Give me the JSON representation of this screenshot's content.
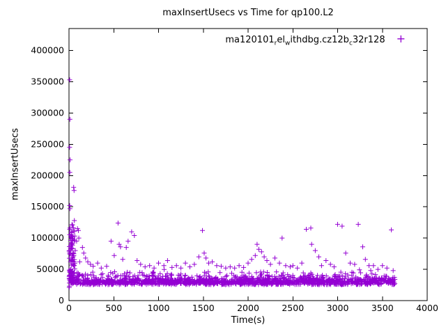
{
  "figure": {
    "title": "maxInsertUsecs vs Time for qp100.L2",
    "xlabel": "Time(s)",
    "ylabel": "maxInsertUsecs"
  },
  "legend": {
    "plain_label": "ma120101_rel_withdbg.cz12b_c32r128",
    "segments": [
      {
        "t": "ma120101"
      },
      {
        "s": "r"
      },
      {
        "t": "el"
      },
      {
        "s": "w"
      },
      {
        "t": "ithdbg.cz12b"
      },
      {
        "s": "c"
      },
      {
        "t": "32r128"
      }
    ],
    "marker_glyph": "+",
    "marker_color": "#9400d3"
  },
  "chart_data": {
    "type": "scatter",
    "title": "maxInsertUsecs vs Time for qp100.L2",
    "xlabel": "Time(s)",
    "ylabel": "maxInsertUsecs",
    "xlim": [
      0,
      4000
    ],
    "ylim": [
      0,
      435000
    ],
    "xticks": [
      0,
      500,
      1000,
      1500,
      2000,
      2500,
      3000,
      3500,
      4000
    ],
    "yticks": [
      0,
      50000,
      100000,
      150000,
      200000,
      250000,
      300000,
      350000,
      400000
    ],
    "grid": false,
    "legend_position": "top-right-inside",
    "series_name": "ma120101_rel_withdbg.cz12b_c32r128",
    "marker": "plus",
    "color": "#9400d3",
    "outlier_points": [
      [
        8,
        353000
      ],
      [
        10,
        290000
      ],
      [
        7,
        245000
      ],
      [
        12,
        225000
      ],
      [
        9,
        205000
      ],
      [
        52,
        181000
      ],
      [
        57,
        176000
      ],
      [
        8,
        152000
      ],
      [
        11,
        147000
      ],
      [
        60,
        128000
      ],
      [
        40,
        121000
      ],
      [
        95,
        115000
      ],
      [
        105,
        112000
      ],
      [
        110,
        100000
      ],
      [
        85,
        95000
      ],
      [
        30,
        90000
      ],
      [
        22,
        86000
      ],
      [
        70,
        80000
      ],
      [
        18,
        76000
      ],
      [
        45,
        70000
      ],
      [
        35,
        66000
      ],
      [
        120,
        62000
      ],
      [
        3,
        21000
      ],
      [
        5,
        23000
      ],
      [
        150,
        85000
      ],
      [
        165,
        76000
      ],
      [
        185,
        68000
      ],
      [
        210,
        62000
      ],
      [
        240,
        58000
      ],
      [
        270,
        55000
      ],
      [
        320,
        60000
      ],
      [
        360,
        52000
      ],
      [
        420,
        55000
      ],
      [
        470,
        95000
      ],
      [
        505,
        72000
      ],
      [
        548,
        124000
      ],
      [
        560,
        90000
      ],
      [
        575,
        86000
      ],
      [
        600,
        66000
      ],
      [
        640,
        85000
      ],
      [
        660,
        95000
      ],
      [
        700,
        110000
      ],
      [
        730,
        104000
      ],
      [
        760,
        64000
      ],
      [
        800,
        58000
      ],
      [
        850,
        54000
      ],
      [
        900,
        56000
      ],
      [
        950,
        52000
      ],
      [
        1000,
        60000
      ],
      [
        1060,
        56000
      ],
      [
        1100,
        64000
      ],
      [
        1150,
        53000
      ],
      [
        1200,
        56000
      ],
      [
        1250,
        52000
      ],
      [
        1300,
        60000
      ],
      [
        1350,
        54000
      ],
      [
        1400,
        58000
      ],
      [
        1450,
        70000
      ],
      [
        1490,
        112000
      ],
      [
        1510,
        76000
      ],
      [
        1530,
        68000
      ],
      [
        1560,
        60000
      ],
      [
        1600,
        62000
      ],
      [
        1650,
        56000
      ],
      [
        1700,
        55000
      ],
      [
        1750,
        52000
      ],
      [
        1800,
        54000
      ],
      [
        1850,
        52000
      ],
      [
        1900,
        56000
      ],
      [
        1950,
        53000
      ],
      [
        2000,
        60000
      ],
      [
        2040,
        66000
      ],
      [
        2080,
        72000
      ],
      [
        2100,
        90000
      ],
      [
        2120,
        82000
      ],
      [
        2150,
        78000
      ],
      [
        2180,
        70000
      ],
      [
        2210,
        64000
      ],
      [
        2250,
        58000
      ],
      [
        2300,
        68000
      ],
      [
        2350,
        60000
      ],
      [
        2380,
        100000
      ],
      [
        2420,
        56000
      ],
      [
        2470,
        54000
      ],
      [
        2500,
        56000
      ],
      [
        2550,
        52000
      ],
      [
        2600,
        60000
      ],
      [
        2650,
        114000
      ],
      [
        2700,
        116000
      ],
      [
        2710,
        90000
      ],
      [
        2750,
        80000
      ],
      [
        2790,
        70000
      ],
      [
        2820,
        56000
      ],
      [
        2870,
        64000
      ],
      [
        2920,
        58000
      ],
      [
        2960,
        54000
      ],
      [
        3000,
        122000
      ],
      [
        3050,
        119000
      ],
      [
        3090,
        76000
      ],
      [
        3140,
        60000
      ],
      [
        3190,
        58000
      ],
      [
        3230,
        122000
      ],
      [
        3280,
        86000
      ],
      [
        3310,
        66000
      ],
      [
        3350,
        56000
      ],
      [
        3400,
        56000
      ],
      [
        3450,
        50000
      ],
      [
        3500,
        56000
      ],
      [
        3550,
        52000
      ],
      [
        3600,
        113000
      ],
      [
        3620,
        48000
      ]
    ],
    "dense_band": {
      "description": "dense noise band of samples between ~25000 and ~50000 usecs across the whole run",
      "x_min": 2,
      "x_max": 3655,
      "count": 1500,
      "y_floor": 24000,
      "y_core_max": 36000,
      "y_tail_max": 50000,
      "seed": 7
    },
    "startup_cluster": {
      "description": "dense vertical smear of slow inserts right after start",
      "x_min": 2,
      "x_max": 65,
      "count": 90,
      "y_min": 33000,
      "y_max": 127000
    }
  }
}
